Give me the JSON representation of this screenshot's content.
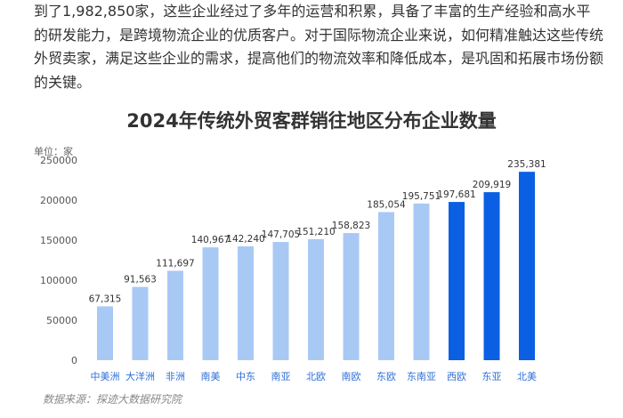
{
  "article": {
    "paragraph": "到了1,982,850家，这些企业经过了多年的运营和积累，具备了丰富的生产经验和高水平的研发能力，是跨境物流企业的优质客户。对于国际物流企业来说，如何精准触达这些传统外贸卖家，满足这些企业的需求，提高他们的物流效率和降低成本，是巩固和拓展市场份额的关键。"
  },
  "chart_data": {
    "type": "bar",
    "title": "2024年传统外贸客群销往地区分布企业数量",
    "unit_label": "单位：家",
    "source": "数据来源：探迹大数据研究院",
    "categories": [
      "中美洲",
      "大洋洲",
      "非洲",
      "南美",
      "中东",
      "南亚",
      "北欧",
      "南欧",
      "东欧",
      "东南亚",
      "西欧",
      "东亚",
      "北美"
    ],
    "values": [
      67315,
      91563,
      111697,
      140967,
      142240,
      147705,
      151210,
      158823,
      185054,
      195751,
      197681,
      209919,
      235381
    ],
    "value_labels": [
      "67,315",
      "91,563",
      "111,697",
      "140,967",
      "142,240",
      "147,705",
      "151,210",
      "158,823",
      "185,054",
      "195,751",
      "197,681",
      "209,919",
      "235,381"
    ],
    "highlighted": [
      "西欧",
      "东亚",
      "北美"
    ],
    "yticks": [
      "0",
      "50000",
      "100000",
      "150000",
      "200000",
      "250000"
    ],
    "ylim": [
      0,
      250000
    ],
    "grid": false,
    "colors": {
      "normal": "#a9c9f5",
      "highlight": "#0b5fe3"
    }
  }
}
